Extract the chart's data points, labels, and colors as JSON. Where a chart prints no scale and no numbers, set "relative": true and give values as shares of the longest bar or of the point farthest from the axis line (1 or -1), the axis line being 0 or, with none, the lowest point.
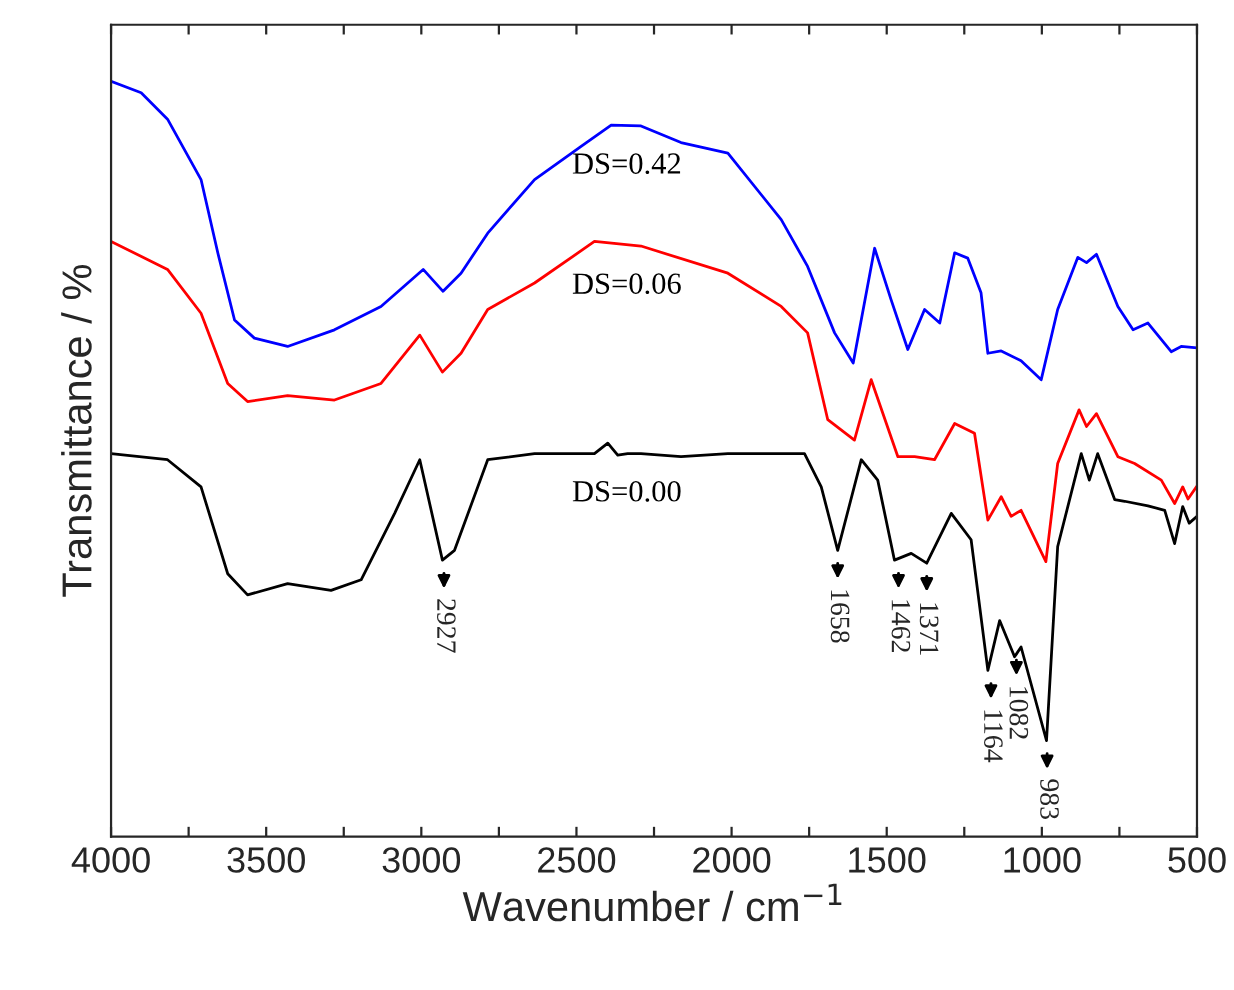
{
  "chart_data": {
    "type": "line",
    "relative": true,
    "xlabel": "Wavenumber / cm$^{−1}$",
    "ylabel": "Transmittance / %",
    "xlim": [
      4000,
      500
    ],
    "xticks": [
      4000,
      {
        "value": 3750,
        "label": null
      },
      3500,
      {
        "value": 3250,
        "label": null
      },
      3000,
      {
        "value": 2750,
        "label": null
      },
      2500,
      {
        "value": 2250,
        "label": null
      },
      2000,
      {
        "value": 1750,
        "label": null
      },
      1500,
      {
        "value": 1250,
        "label": null
      },
      1000,
      {
        "value": 750,
        "label": null
      },
      500
    ],
    "grid": false,
    "legend": false,
    "marker": "none",
    "line_style": "solid",
    "series": [
      {
        "name": "DS=0.42",
        "color": "#0000ff",
        "x": [
          4000,
          3903,
          3818,
          3710,
          3656,
          3602,
          3538,
          3431,
          3280,
          3130,
          2994,
          2930,
          2872,
          2786,
          2635,
          2485,
          2388,
          2292,
          2163,
          2012,
          1840,
          1755,
          1668,
          1608,
          1539,
          1486,
          1432,
          1378,
          1329,
          1281,
          1239,
          1196,
          1174,
          1131,
          1067,
          1002,
          949,
          884,
          856,
          824,
          755,
          706,
          658,
          583,
          551,
          500
        ],
        "values": [
          1.0,
          0.985,
          0.95,
          0.87,
          0.773,
          0.684,
          0.66,
          0.649,
          0.671,
          0.702,
          0.751,
          0.722,
          0.746,
          0.799,
          0.87,
          0.914,
          0.942,
          0.941,
          0.919,
          0.905,
          0.817,
          0.755,
          0.667,
          0.627,
          0.779,
          0.711,
          0.645,
          0.698,
          0.68,
          0.773,
          0.766,
          0.72,
          0.64,
          0.643,
          0.63,
          0.605,
          0.698,
          0.767,
          0.76,
          0.771,
          0.702,
          0.671,
          0.68,
          0.642,
          0.649,
          0.647
        ]
      },
      {
        "name": "DS=0.06",
        "color": "#ff0000",
        "x": [
          4000,
          3818,
          3710,
          3624,
          3560,
          3431,
          3280,
          3130,
          3005,
          2932,
          2872,
          2786,
          2635,
          2442,
          2292,
          2012,
          1840,
          1755,
          1690,
          1604,
          1550,
          1464,
          1410,
          1346,
          1281,
          1217,
          1174,
          1131,
          1099,
          1067,
          987,
          949,
          880,
          856,
          824,
          755,
          701,
          615,
          572,
          546,
          529,
          500
        ],
        "values": [
          0.788,
          0.751,
          0.693,
          0.6,
          0.576,
          0.584,
          0.578,
          0.6,
          0.664,
          0.615,
          0.64,
          0.698,
          0.733,
          0.788,
          0.782,
          0.746,
          0.702,
          0.667,
          0.552,
          0.525,
          0.605,
          0.503,
          0.503,
          0.499,
          0.547,
          0.534,
          0.419,
          0.45,
          0.424,
          0.432,
          0.364,
          0.494,
          0.565,
          0.543,
          0.56,
          0.503,
          0.494,
          0.472,
          0.441,
          0.463,
          0.447,
          0.464
        ]
      },
      {
        "name": "DS=0.00",
        "color": "#000000",
        "x": [
          4000,
          3818,
          3710,
          3624,
          3560,
          3431,
          3291,
          3194,
          3086,
          3005,
          2932,
          2893,
          2786,
          2635,
          2442,
          2399,
          2367,
          2335,
          2292,
          2163,
          2012,
          1765,
          1711,
          1658,
          1582,
          1529,
          1475,
          1421,
          1371,
          1292,
          1228,
          1174,
          1136,
          1088,
          1067,
          985,
          949,
          873,
          847,
          820,
          765,
          733,
          658,
          604,
          572,
          546,
          525,
          500
        ],
        "values": [
          0.507,
          0.499,
          0.463,
          0.348,
          0.32,
          0.335,
          0.326,
          0.34,
          0.428,
          0.499,
          0.366,
          0.379,
          0.499,
          0.507,
          0.507,
          0.521,
          0.505,
          0.507,
          0.507,
          0.503,
          0.507,
          0.507,
          0.463,
          0.379,
          0.499,
          0.472,
          0.366,
          0.375,
          0.362,
          0.428,
          0.393,
          0.22,
          0.286,
          0.238,
          0.251,
          0.127,
          0.384,
          0.507,
          0.472,
          0.507,
          0.446,
          0.444,
          0.438,
          0.432,
          0.388,
          0.437,
          0.415,
          0.424
        ]
      }
    ],
    "annotations": [
      {
        "text": "2927",
        "x": 2927,
        "y": 0.366
      },
      {
        "text": "1658",
        "x": 1658,
        "y": 0.379
      },
      {
        "text": "1462",
        "x": 1462,
        "y": 0.366
      },
      {
        "text": "1371",
        "x": 1371,
        "y": 0.362
      },
      {
        "text": "1164",
        "x": 1164,
        "y": 0.22
      },
      {
        "text": "1082",
        "x": 1082,
        "y": 0.251
      },
      {
        "text": "983",
        "x": 983,
        "y": 0.127
      }
    ]
  }
}
